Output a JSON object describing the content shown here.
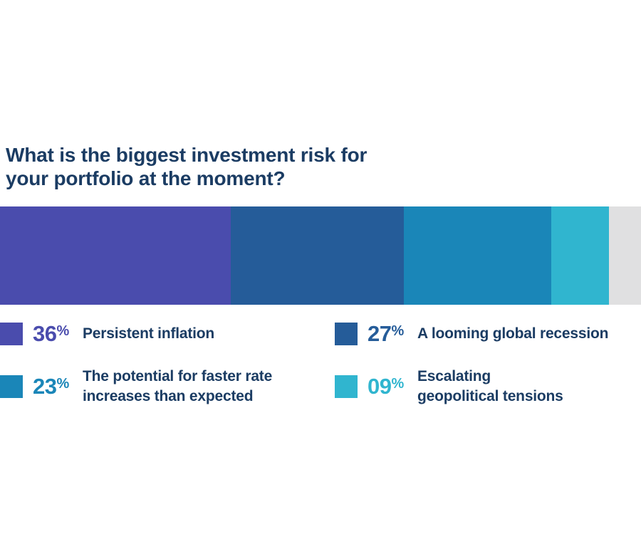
{
  "page": {
    "background_color": "#FFFFFF",
    "text_color": "#1B3C63"
  },
  "title": {
    "line1": "What is the biggest investment risk for",
    "line2": "your portfolio at the moment?",
    "color": "#1B3C63"
  },
  "chart_data": {
    "type": "bar",
    "variant": "horizontal_stacked_single_bar",
    "title": "What is the biggest investment risk for your portfolio at the moment?",
    "unit": "%",
    "axes": "none",
    "grid": false,
    "legend_position": "below",
    "bar_total_pct": 100,
    "series": [
      {
        "name": "Persistent inflation",
        "value_pct": 36,
        "display_value": "36%",
        "color": "#4A4CAD"
      },
      {
        "name": "A looming global recession",
        "value_pct": 27,
        "display_value": "27%",
        "color": "#255C99"
      },
      {
        "name": "The potential for faster rate increases than expected",
        "value_pct": 23,
        "display_value": "23%",
        "color": "#1A86B8"
      },
      {
        "name": "Escalating geopolitical tensions",
        "value_pct": 9,
        "display_value": "09%",
        "color": "#30B5CF"
      },
      {
        "name": "",
        "value_pct": 5,
        "display_value": "",
        "color": "#E0E0E1"
      }
    ]
  },
  "legend": {
    "percent_sign": "%",
    "label_color": "#1B3C63",
    "items": [
      {
        "value": "36",
        "color": "#4A4CAD",
        "label": "Persistent inflation",
        "label_lines": [
          "Persistent inflation"
        ]
      },
      {
        "value": "27",
        "color": "#255C99",
        "label": "A looming global recession",
        "label_lines": [
          "A looming global recession"
        ]
      },
      {
        "value": "23",
        "color": "#1A86B8",
        "label": "The potential for faster rate increases than expected",
        "label_lines": [
          "The potential for faster rate",
          "increases than expected"
        ]
      },
      {
        "value": "09",
        "color": "#30B5CF",
        "label": "Escalating geopolitical tensions",
        "label_lines": [
          "Escalating",
          "geopolitical tensions"
        ]
      }
    ]
  }
}
